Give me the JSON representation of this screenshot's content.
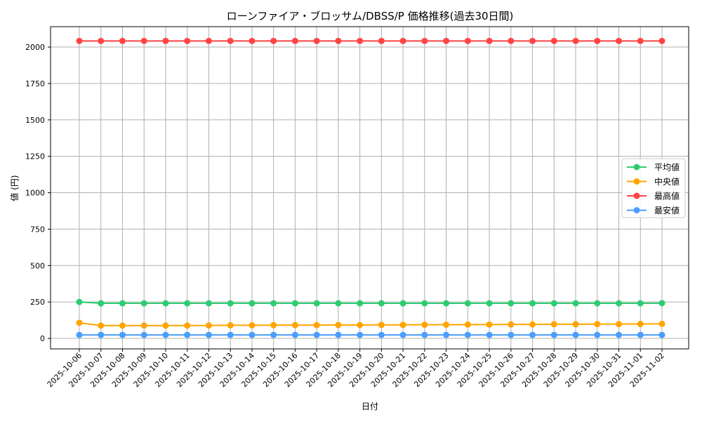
{
  "chart_data": {
    "type": "line",
    "title": "ローンファイア・ブロッサム/DBSS/P 価格推移(過去30日間)",
    "xlabel": "日付",
    "ylabel": "値 (円)",
    "ylim": [
      -72,
      2140
    ],
    "yticks": [
      0,
      250,
      500,
      750,
      1000,
      1250,
      1500,
      1750,
      2000
    ],
    "grid": true,
    "legend_position": "center-right",
    "x": [
      "2025-10-06",
      "2025-10-07",
      "2025-10-08",
      "2025-10-09",
      "2025-10-10",
      "2025-10-11",
      "2025-10-12",
      "2025-10-13",
      "2025-10-14",
      "2025-10-15",
      "2025-10-16",
      "2025-10-17",
      "2025-10-18",
      "2025-10-19",
      "2025-10-20",
      "2025-10-21",
      "2025-10-22",
      "2025-10-23",
      "2025-10-24",
      "2025-10-25",
      "2025-10-26",
      "2025-10-27",
      "2025-10-28",
      "2025-10-29",
      "2025-10-30",
      "2025-10-31",
      "2025-11-01",
      "2025-11-02"
    ],
    "series": [
      {
        "name": "平均値",
        "color": "#2ecc71",
        "values": [
          250,
          241,
          241,
          241,
          241,
          241,
          241,
          241,
          241,
          241,
          241,
          241,
          241,
          241,
          241,
          241,
          241,
          241,
          241,
          241,
          241,
          241,
          241,
          241,
          241,
          241,
          241,
          242
        ]
      },
      {
        "name": "中央値",
        "color": "#ffa500",
        "values": [
          107,
          88,
          88,
          88,
          88,
          88,
          89,
          90,
          90,
          91,
          91,
          91,
          92,
          92,
          93,
          93,
          94,
          94,
          95,
          95,
          96,
          96,
          97,
          97,
          98,
          98,
          99,
          100
        ]
      },
      {
        "name": "最高値",
        "color": "#ff4444",
        "values": [
          2042,
          2042,
          2042,
          2042,
          2042,
          2042,
          2042,
          2042,
          2042,
          2042,
          2042,
          2042,
          2042,
          2042,
          2042,
          2042,
          2042,
          2042,
          2042,
          2042,
          2042,
          2042,
          2042,
          2042,
          2042,
          2042,
          2042,
          2042
        ]
      },
      {
        "name": "最安値",
        "color": "#4a9eff",
        "values": [
          24,
          24,
          24,
          24,
          24,
          24,
          24,
          24,
          24,
          24,
          24,
          24,
          24,
          24,
          24,
          24,
          24,
          24,
          24,
          24,
          24,
          24,
          24,
          24,
          24,
          24,
          24,
          24
        ]
      }
    ]
  }
}
